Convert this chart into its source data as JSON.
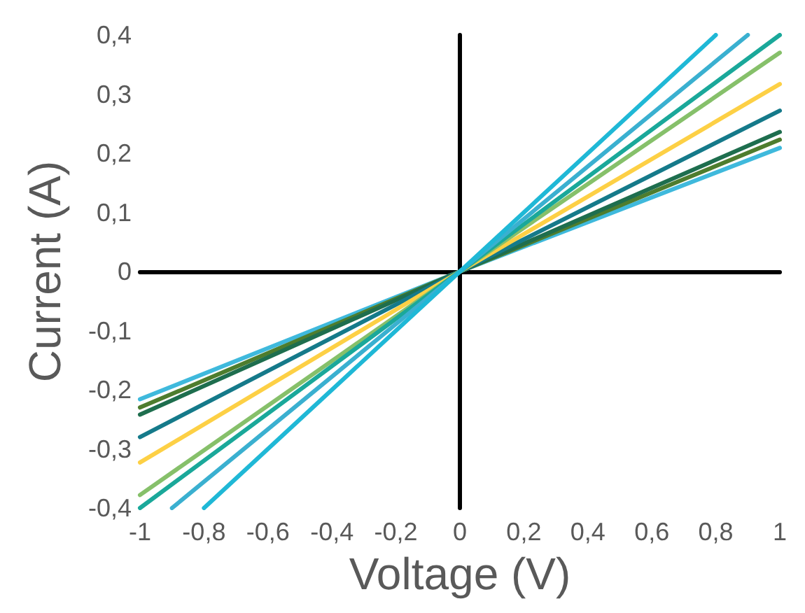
{
  "chart_data": {
    "type": "line",
    "xlabel": "Voltage (V)",
    "ylabel": "Current (A)",
    "marker": "none",
    "line_style": "solid",
    "xlim": [
      -1,
      1
    ],
    "ylim": [
      -0.4,
      0.4
    ],
    "xticks": [
      -1,
      {
        "value": -0.8,
        "label": "-0,8"
      },
      {
        "value": -0.6,
        "label": "-0,6"
      },
      {
        "value": -0.4,
        "label": "-0,4"
      },
      {
        "value": -0.2,
        "label": "-0,2"
      },
      0,
      {
        "value": 0.2,
        "label": "0,2"
      },
      {
        "value": 0.4,
        "label": "0,4"
      },
      {
        "value": 0.6,
        "label": "0,6"
      },
      {
        "value": 0.8,
        "label": "0,8"
      },
      1
    ],
    "yticks": [
      {
        "value": -0.4,
        "label": "-0,4"
      },
      {
        "value": -0.3,
        "label": "-0,3"
      },
      {
        "value": -0.2,
        "label": "-0,2"
      },
      {
        "value": -0.1,
        "label": "-0,1"
      },
      0,
      {
        "value": 0.1,
        "label": "0,1"
      },
      {
        "value": 0.2,
        "label": "0,2"
      },
      {
        "value": 0.3,
        "label": "0,3"
      },
      {
        "value": 0.4,
        "label": "0,4"
      }
    ],
    "series": [
      {
        "color": "#3fb9dc",
        "x": [
          -1,
          0,
          1
        ],
        "values": [
          -0.216,
          0,
          0.209
        ]
      },
      {
        "color": "#4e7d2e",
        "x": [
          -1,
          0,
          1
        ],
        "values": [
          -0.23,
          0,
          0.223
        ]
      },
      {
        "color": "#1e6e4e",
        "x": [
          -1,
          0,
          1
        ],
        "values": [
          -0.242,
          0,
          0.236
        ]
      },
      {
        "color": "#157a8a",
        "x": [
          -1,
          0,
          1
        ],
        "values": [
          -0.28,
          0,
          0.272
        ]
      },
      {
        "color": "#fdd045",
        "x": [
          -1,
          0,
          1
        ],
        "values": [
          -0.323,
          0,
          0.317
        ]
      },
      {
        "color": "#86c06a",
        "x": [
          -1,
          0,
          1
        ],
        "values": [
          -0.378,
          0,
          0.37
        ]
      },
      {
        "color": "#1aa89a",
        "x": [
          -1,
          0,
          1
        ],
        "values": [
          -0.4,
          0,
          0.4
        ]
      },
      {
        "color": "#3ab0d0",
        "x": [
          -0.9,
          0,
          0.9
        ],
        "values": [
          -0.4,
          0,
          0.4
        ]
      },
      {
        "color": "#1fb8d6",
        "x": [
          -0.8,
          0,
          0.8
        ],
        "values": [
          -0.4,
          0,
          0.4
        ]
      }
    ]
  }
}
